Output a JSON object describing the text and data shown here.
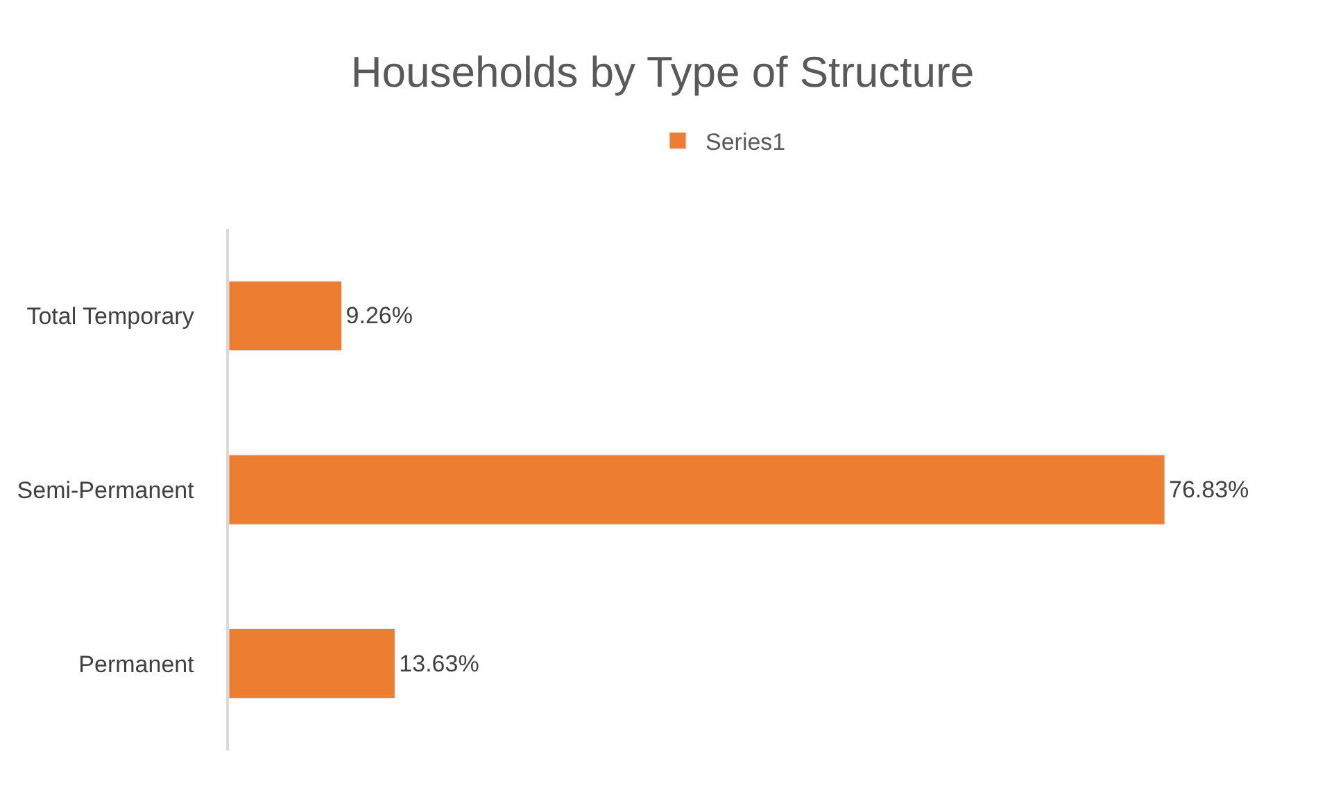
{
  "chart_data": {
    "type": "bar",
    "orientation": "horizontal",
    "title": "Households by Type of Structure",
    "categories": [
      "Total Temporary",
      "Semi-Permanent",
      "Permanent"
    ],
    "series": [
      {
        "name": "Series1",
        "color": "#ed7d31",
        "values": [
          9.26,
          76.83,
          13.63
        ],
        "value_labels": [
          "9.26%",
          "76.83%",
          "13.63%"
        ]
      }
    ],
    "tick_labels": "y",
    "legend": "top"
  }
}
